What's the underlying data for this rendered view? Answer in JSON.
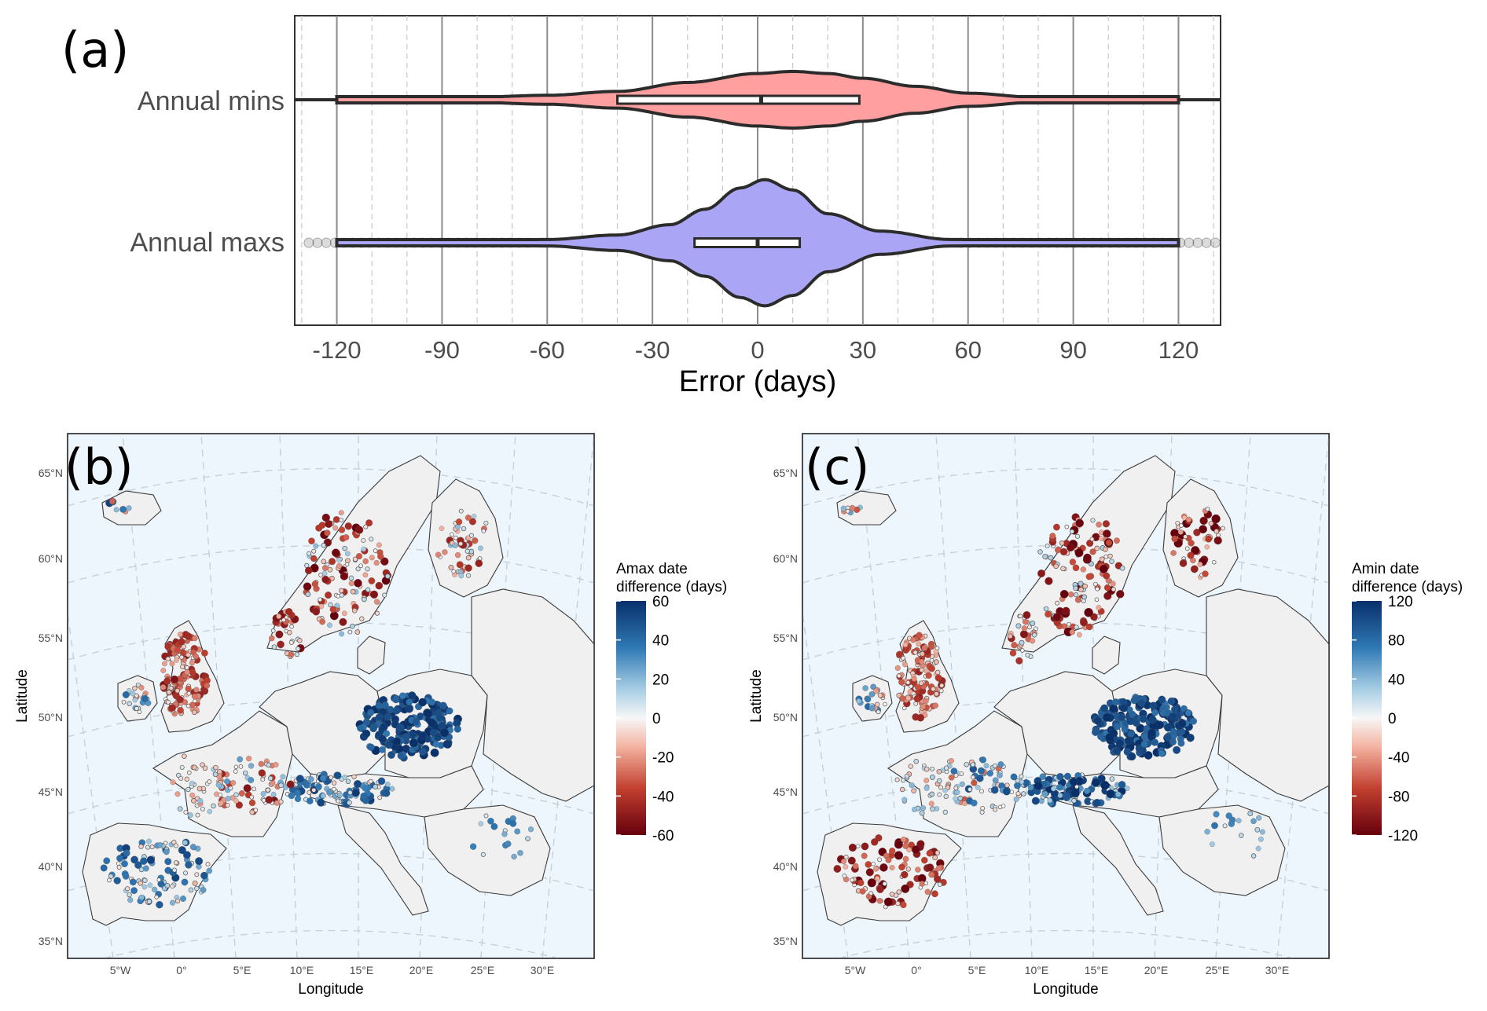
{
  "chart_data": [
    {
      "type": "violin",
      "panel_label": "(a)",
      "xlabel": "Error (days)",
      "ylabel": "",
      "xlim": [
        -132,
        132
      ],
      "xticks": [
        -120,
        -90,
        -60,
        -30,
        0,
        30,
        60,
        90,
        120
      ],
      "xtick_labels": [
        "-120",
        "-90",
        "-60",
        "-30",
        "0",
        "30",
        "60",
        "90",
        "120"
      ],
      "grid": "on",
      "categories": [
        "Annual mins",
        "Annual maxs"
      ],
      "series": [
        {
          "name": "Annual mins",
          "color": "#ff9f9f",
          "range": [
            -120,
            120
          ],
          "box": {
            "q1": -40,
            "median": 1,
            "q3": 29
          },
          "whiskers": [
            -132,
            132
          ],
          "density_profile": [
            [
              -120,
              0.03
            ],
            [
              -100,
              0.06
            ],
            [
              -80,
              0.09
            ],
            [
              -60,
              0.15
            ],
            [
              -40,
              0.28
            ],
            [
              -20,
              0.58
            ],
            [
              0,
              0.88
            ],
            [
              10,
              0.95
            ],
            [
              20,
              0.88
            ],
            [
              30,
              0.72
            ],
            [
              45,
              0.45
            ],
            [
              60,
              0.22
            ],
            [
              80,
              0.08
            ],
            [
              100,
              0.03
            ],
            [
              120,
              0.02
            ]
          ]
        },
        {
          "name": "Annual maxs",
          "color": "#aaa6f5",
          "range": [
            -120,
            120
          ],
          "box": {
            "q1": -18,
            "median": 0,
            "q3": 12
          },
          "whiskers": [
            -63,
            57
          ],
          "density_profile": [
            [
              -120,
              0.02
            ],
            [
              -80,
              0.03
            ],
            [
              -60,
              0.05
            ],
            [
              -40,
              0.12
            ],
            [
              -25,
              0.28
            ],
            [
              -15,
              0.52
            ],
            [
              -5,
              0.85
            ],
            [
              2,
              0.98
            ],
            [
              10,
              0.82
            ],
            [
              20,
              0.45
            ],
            [
              35,
              0.18
            ],
            [
              55,
              0.05
            ],
            [
              90,
              0.02
            ],
            [
              120,
              0.02
            ]
          ]
        }
      ]
    },
    {
      "type": "map",
      "panel_label": "(b)",
      "xlabel": "Longitude",
      "ylabel": "Latitude",
      "lon_ticks": [
        "5°W",
        "0°",
        "5°E",
        "10°E",
        "15°E",
        "20°E",
        "25°E",
        "30°E"
      ],
      "lat_ticks": [
        "35°N",
        "40°N",
        "45°N",
        "50°N",
        "55°N",
        "60°N",
        "65°N"
      ],
      "legend": {
        "title_lines": [
          "Amax date",
          "difference (days)"
        ],
        "ticks": [
          "60",
          "40",
          "20",
          "0",
          "-20",
          "-40",
          "-60"
        ],
        "range": [
          -60,
          60
        ]
      }
    },
    {
      "type": "map",
      "panel_label": "(c)",
      "xlabel": "Longitude",
      "ylabel": "Latitude",
      "lon_ticks": [
        "5°W",
        "0°",
        "5°E",
        "10°E",
        "15°E",
        "20°E",
        "25°E",
        "30°E"
      ],
      "lat_ticks": [
        "35°N",
        "40°N",
        "45°N",
        "50°N",
        "55°N",
        "60°N",
        "65°N"
      ],
      "legend": {
        "title_lines": [
          "Amin date",
          "difference (days)"
        ],
        "ticks": [
          "120",
          "80",
          "40",
          "0",
          "-40",
          "-80",
          "-120"
        ],
        "range": [
          -120,
          120
        ]
      }
    }
  ],
  "colors": {
    "diverging_high": "#08306b",
    "diverging_mid": "#f7f7f7",
    "diverging_low": "#67000d",
    "sea": "#eef6fd",
    "land": "#f0f0f0",
    "mins_fill": "#ff9f9f",
    "maxs_fill": "#aaa6f5"
  }
}
